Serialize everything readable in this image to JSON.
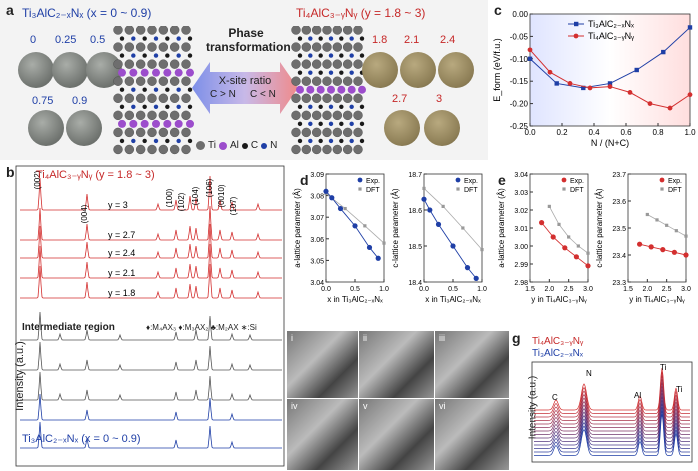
{
  "panel_a": {
    "label": "a",
    "left_title": "Ti₃AlC₂₋ₓNₓ (x = 0 ~ 0.9)",
    "right_title": "Ti₄AlC₃₋ᵧNᵧ (y = 1.8 ~ 3)",
    "phase_line1": "Phase",
    "phase_line2": "transformation",
    "xsite_title": "X-site ratio",
    "ratio_left": "C > N",
    "ratio_right": "C < N",
    "left_samples": [
      "0",
      "0.25",
      "0.5",
      "0.75",
      "0.9"
    ],
    "right_samples": [
      "1.8",
      "2.1",
      "2.4",
      "2.7",
      "3"
    ],
    "legend": [
      "Ti",
      "Al",
      "C",
      "N"
    ],
    "colors": {
      "ti": "#6e6e6e",
      "al": "#9c4dcc",
      "c": "#1a1a1a",
      "n": "#1f3fa6",
      "blue": "#1f3fa6",
      "red": "#d32f2f"
    }
  },
  "panel_b": {
    "label": "b",
    "top_title": "Ti₄AlC₃₋ᵧNᵧ (y = 1.8 ~ 3)",
    "peaks": [
      "(002)",
      "(004)",
      "(100)",
      "(102)",
      "(104)",
      "(106)",
      "(0010)",
      "(107)"
    ],
    "y_values": [
      "y = 3",
      "y = 2.7",
      "y = 2.4",
      "y = 2.1",
      "y = 1.8"
    ],
    "intermediate": "Intermediate region",
    "phase_legend": "♦:M₄AX₃ ♦:M₃AX₂ ♣:M₂AX ∗:Si",
    "bottom_title": "Ti₃AlC₂₋ₓNₓ (x = 0 ~ 0.9)",
    "ylabel": "Intensity (a.u.)"
  },
  "chart_data": [
    {
      "panel": "c",
      "type": "line",
      "xlabel": "N / (N+C)",
      "ylabel": "E_form (eV/f.u.)",
      "xlim": [
        0,
        1
      ],
      "ylim": [
        -0.25,
        0
      ],
      "xticks": [
        "0.0",
        "0.2",
        "0.4",
        "0.6",
        "0.8",
        "1.0"
      ],
      "yticks": [
        "0.00",
        "-0.05",
        "-0.10",
        "-0.15",
        "-0.20",
        "-0.25"
      ],
      "series": [
        {
          "name": "Ti₃AlC₂₋ₓNₓ",
          "color": "#1f3fa6",
          "x": [
            0.0,
            0.167,
            0.333,
            0.5,
            0.667,
            0.833,
            1.0
          ],
          "y": [
            -0.1,
            -0.155,
            -0.165,
            -0.155,
            -0.125,
            -0.085,
            -0.03
          ]
        },
        {
          "name": "Ti₄AlC₃₋ᵧNᵧ",
          "color": "#d32f2f",
          "x": [
            0.0,
            0.125,
            0.25,
            0.375,
            0.5,
            0.625,
            0.75,
            0.875,
            1.0
          ],
          "y": [
            -0.08,
            -0.13,
            -0.155,
            -0.165,
            -0.162,
            -0.175,
            -0.2,
            -0.21,
            -0.18
          ]
        }
      ]
    },
    {
      "panel": "d-a",
      "type": "scatter",
      "xlabel": "x in Ti₃AlC₂₋ₓNₓ",
      "ylabel": "a-lattice parameter (Å)",
      "xlim": [
        0,
        1.0
      ],
      "ylim": [
        3.04,
        3.09
      ],
      "xticks": [
        "0.0",
        "0.5",
        "1.0"
      ],
      "yticks": [
        "3.09",
        "3.08",
        "3.07",
        "3.06",
        "3.05",
        "3.04"
      ],
      "series": [
        {
          "name": "Exp.",
          "x": [
            0.0,
            0.1,
            0.25,
            0.5,
            0.75,
            0.9
          ],
          "y": [
            3.082,
            3.079,
            3.074,
            3.066,
            3.056,
            3.051
          ]
        },
        {
          "name": "DFT",
          "x": [
            0.0,
            0.33,
            0.67,
            1.0
          ],
          "y": [
            3.081,
            3.074,
            3.066,
            3.058
          ]
        }
      ]
    },
    {
      "panel": "d-c",
      "type": "scatter",
      "xlabel": "x in Ti₃AlC₂₋ₓNₓ",
      "ylabel": "c-lattice parameter (Å)",
      "xlim": [
        0,
        1.0
      ],
      "ylim": [
        18.4,
        18.7
      ],
      "xticks": [
        "0.0",
        "0.5",
        "1.0"
      ],
      "yticks": [
        "18.7",
        "18.6",
        "18.5",
        "18.4"
      ],
      "series": [
        {
          "name": "Exp.",
          "x": [
            0.0,
            0.1,
            0.25,
            0.5,
            0.75,
            0.9
          ],
          "y": [
            18.63,
            18.6,
            18.56,
            18.5,
            18.44,
            18.41
          ]
        },
        {
          "name": "DFT",
          "x": [
            0.0,
            0.33,
            0.67,
            1.0
          ],
          "y": [
            18.66,
            18.61,
            18.55,
            18.49
          ]
        }
      ]
    },
    {
      "panel": "e-a",
      "type": "scatter",
      "xlabel": "y in Ti₄AlC₃₋ᵧNᵧ",
      "ylabel": "a-lattice parameter (Å)",
      "xlim": [
        1.5,
        3.0
      ],
      "ylim": [
        2.98,
        3.04
      ],
      "xticks": [
        "1.5",
        "2.0",
        "2.5",
        "3.0"
      ],
      "yticks": [
        "3.04",
        "3.03",
        "3.02",
        "3.01",
        "3.00",
        "2.99",
        "2.98"
      ],
      "series": [
        {
          "name": "Exp.",
          "x": [
            1.8,
            2.1,
            2.4,
            2.7,
            3.0
          ],
          "y": [
            3.013,
            3.005,
            2.999,
            2.994,
            2.989
          ]
        },
        {
          "name": "DFT",
          "x": [
            2.0,
            2.25,
            2.5,
            2.75,
            3.0
          ],
          "y": [
            3.022,
            3.012,
            3.005,
            3.0,
            2.996
          ]
        }
      ]
    },
    {
      "panel": "e-c",
      "type": "scatter",
      "xlabel": "y in Ti₄AlC₃₋ᵧNᵧ",
      "ylabel": "c-lattice parameter (Å)",
      "xlim": [
        1.5,
        3.0
      ],
      "ylim": [
        23.3,
        23.7
      ],
      "xticks": [
        "1.5",
        "2.0",
        "2.5",
        "3.0"
      ],
      "yticks": [
        "23.7",
        "23.6",
        "23.5",
        "23.4",
        "23.3"
      ],
      "series": [
        {
          "name": "Exp.",
          "x": [
            1.8,
            2.1,
            2.4,
            2.7,
            3.0
          ],
          "y": [
            23.44,
            23.43,
            23.42,
            23.41,
            23.4
          ]
        },
        {
          "name": "DFT",
          "x": [
            2.0,
            2.25,
            2.5,
            2.75,
            3.0
          ],
          "y": [
            23.55,
            23.53,
            23.51,
            23.49,
            23.47
          ]
        }
      ]
    }
  ],
  "panel_c": {
    "label": "c"
  },
  "panel_d": {
    "label": "d"
  },
  "panel_e": {
    "label": "e"
  },
  "panel_f": {
    "label": "f",
    "tiles": [
      "i",
      "ii",
      "iii",
      "iv",
      "v",
      "vi"
    ]
  },
  "panel_g": {
    "label": "g",
    "title_red": "Ti₄AlC₃₋ᵧNᵧ",
    "title_blue": "Ti₃AlC₂₋ₓNₓ",
    "ylabel": "Intensity (a.u.)",
    "peak_labels": [
      "C",
      "N",
      "Al",
      "Ti",
      "Ti"
    ]
  }
}
